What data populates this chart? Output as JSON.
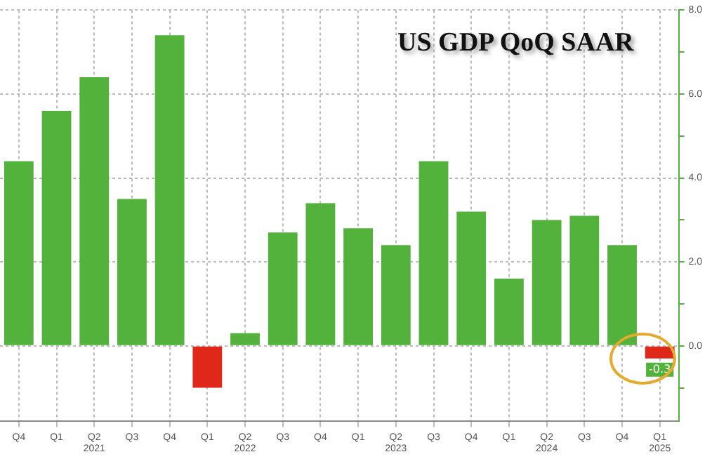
{
  "chart_data": {
    "type": "bar",
    "title": "US GDP QoQ SAAR",
    "categories": [
      "Q4",
      "Q1",
      "Q2\n2021",
      "Q3",
      "Q4",
      "Q1",
      "Q2\n2022",
      "Q3",
      "Q4",
      "Q1",
      "Q2\n2023",
      "Q3",
      "Q4",
      "Q1",
      "Q2\n2024",
      "Q3",
      "Q4",
      "Q1\n2025"
    ],
    "values": [
      4.4,
      5.6,
      6.4,
      3.5,
      7.4,
      -1.0,
      0.3,
      2.7,
      3.4,
      2.8,
      2.4,
      4.4,
      3.2,
      1.6,
      3.0,
      3.1,
      2.4,
      -0.3
    ],
    "colors": [
      "#52b23c",
      "#52b23c",
      "#52b23c",
      "#52b23c",
      "#52b23c",
      "#e0281a",
      "#52b23c",
      "#52b23c",
      "#52b23c",
      "#52b23c",
      "#52b23c",
      "#52b23c",
      "#52b23c",
      "#52b23c",
      "#52b23c",
      "#52b23c",
      "#52b23c",
      "#e0281a"
    ],
    "value_labels": [
      null,
      null,
      null,
      null,
      null,
      null,
      null,
      null,
      null,
      null,
      null,
      null,
      null,
      null,
      null,
      null,
      null,
      "-0.3"
    ],
    "ylim": [
      -1.8,
      8
    ],
    "yticks": [
      {
        "value": -1,
        "label": null
      },
      {
        "value": 0,
        "label": "0.0"
      },
      {
        "value": 1,
        "label": null
      },
      {
        "value": 2,
        "label": "2.0"
      },
      {
        "value": 3,
        "label": null
      },
      {
        "value": 4,
        "label": "4.0"
      },
      {
        "value": 5,
        "label": null
      },
      {
        "value": 6,
        "label": "6.0"
      },
      {
        "value": 7,
        "label": null
      },
      {
        "value": 8,
        "label": "8.0"
      }
    ],
    "grid": true,
    "legend": false
  }
}
